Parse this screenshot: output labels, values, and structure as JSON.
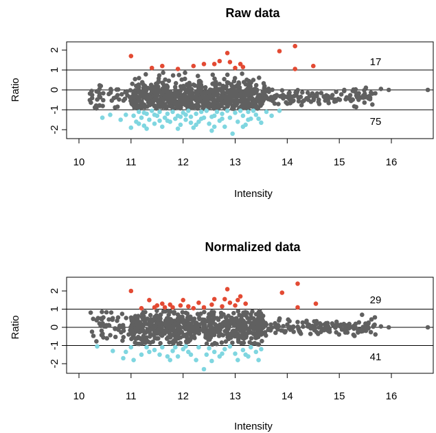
{
  "chart_data": [
    {
      "type": "scatter",
      "title": "Raw data",
      "xlabel": "Intensity",
      "ylabel": "Ratio",
      "xlim": [
        10,
        16.8
      ],
      "ylim": [
        -2.5,
        2.5
      ],
      "x_ticks": [
        "10",
        "11",
        "12",
        "13",
        "14",
        "15",
        "16"
      ],
      "y_ticks": [
        "-2",
        "-1",
        "0",
        "1",
        "2"
      ],
      "hlines": [
        -1,
        0,
        1
      ],
      "counts": {
        "up": "17",
        "down": "75"
      },
      "colors": {
        "up": "#e34a33",
        "down": "#7fd6e0",
        "mid": "#606060"
      },
      "up_points": [
        [
          11.0,
          1.7
        ],
        [
          11.4,
          1.1
        ],
        [
          11.6,
          1.2
        ],
        [
          11.9,
          1.05
        ],
        [
          12.2,
          1.2
        ],
        [
          12.4,
          1.3
        ],
        [
          12.6,
          1.3
        ],
        [
          12.7,
          1.45
        ],
        [
          12.85,
          1.85
        ],
        [
          12.9,
          1.4
        ],
        [
          13.0,
          1.1
        ],
        [
          13.1,
          1.3
        ],
        [
          13.15,
          1.15
        ],
        [
          13.85,
          1.95
        ],
        [
          14.15,
          2.2
        ],
        [
          14.15,
          1.05
        ],
        [
          14.5,
          1.2
        ]
      ],
      "down_points": [
        [
          10.45,
          -1.4
        ],
        [
          10.6,
          -1.25
        ],
        [
          10.8,
          -1.5
        ],
        [
          11.0,
          -1.9
        ],
        [
          11.05,
          -1.3
        ],
        [
          11.1,
          -1.6
        ],
        [
          11.15,
          -1.1
        ],
        [
          11.2,
          -1.4
        ],
        [
          11.25,
          -1.8
        ],
        [
          11.3,
          -1.2
        ],
        [
          11.35,
          -1.5
        ],
        [
          11.4,
          -1.05
        ],
        [
          11.45,
          -1.7
        ],
        [
          11.5,
          -1.3
        ],
        [
          11.55,
          -1.1
        ],
        [
          11.6,
          -1.85
        ],
        [
          11.65,
          -1.4
        ],
        [
          11.7,
          -1.2
        ],
        [
          11.75,
          -1.6
        ],
        [
          11.8,
          -1.1
        ],
        [
          11.85,
          -1.45
        ],
        [
          11.9,
          -1.3
        ],
        [
          11.95,
          -1.75
        ],
        [
          12.0,
          -1.15
        ],
        [
          12.05,
          -1.5
        ],
        [
          12.1,
          -1.05
        ],
        [
          12.15,
          -1.35
        ],
        [
          12.2,
          -1.9
        ],
        [
          12.25,
          -1.2
        ],
        [
          12.3,
          -1.6
        ],
        [
          12.35,
          -1.1
        ],
        [
          12.4,
          -1.4
        ],
        [
          12.45,
          -1.05
        ],
        [
          12.5,
          -1.7
        ],
        [
          12.55,
          -2.05
        ],
        [
          12.6,
          -1.3
        ],
        [
          12.65,
          -1.1
        ],
        [
          12.7,
          -1.55
        ],
        [
          12.75,
          -1.2
        ],
        [
          12.8,
          -1.85
        ],
        [
          12.85,
          -1.05
        ],
        [
          12.9,
          -1.4
        ],
        [
          12.95,
          -2.2
        ],
        [
          13.0,
          -1.15
        ],
        [
          13.05,
          -1.6
        ],
        [
          13.1,
          -1.05
        ],
        [
          13.15,
          -1.3
        ],
        [
          13.2,
          -1.75
        ],
        [
          13.25,
          -1.1
        ],
        [
          13.3,
          -1.45
        ],
        [
          13.35,
          -1.05
        ],
        [
          13.4,
          -1.25
        ],
        [
          13.5,
          -1.65
        ],
        [
          13.6,
          -1.1
        ],
        [
          13.7,
          -1.3
        ],
        [
          13.85,
          -1.05
        ],
        [
          11.9,
          -1.95
        ],
        [
          11.3,
          -1.95
        ],
        [
          12.6,
          -1.85
        ],
        [
          11.7,
          -1.55
        ],
        [
          12.35,
          -1.45
        ],
        [
          10.9,
          -1.25
        ],
        [
          13.45,
          -1.45
        ],
        [
          12.05,
          -1.25
        ],
        [
          11.15,
          -1.7
        ],
        [
          12.75,
          -1.45
        ],
        [
          11.55,
          -1.55
        ],
        [
          12.25,
          -1.75
        ],
        [
          13.25,
          -1.5
        ],
        [
          11.45,
          -1.25
        ],
        [
          12.15,
          -1.65
        ],
        [
          11.95,
          -1.35
        ],
        [
          13.15,
          -1.85
        ],
        [
          12.55,
          -1.35
        ],
        [
          11.25,
          -1.15
        ]
      ]
    },
    {
      "type": "scatter",
      "title": "Normalized data",
      "xlabel": "Intensity",
      "ylabel": "Ratio",
      "xlim": [
        10,
        16.8
      ],
      "ylim": [
        -2.5,
        2.5
      ],
      "x_ticks": [
        "10",
        "11",
        "12",
        "13",
        "14",
        "15",
        "16"
      ],
      "y_ticks": [
        "-2",
        "-1",
        "0",
        "1",
        "2"
      ],
      "hlines": [
        -1,
        0,
        1
      ],
      "counts": {
        "up": "29",
        "down": "41"
      },
      "colors": {
        "up": "#e34a33",
        "down": "#7fd6e0",
        "mid": "#606060"
      },
      "up_points": [
        [
          11.0,
          2.0
        ],
        [
          11.2,
          1.05
        ],
        [
          11.35,
          1.5
        ],
        [
          11.5,
          1.2
        ],
        [
          11.6,
          1.3
        ],
        [
          11.65,
          1.1
        ],
        [
          11.75,
          1.25
        ],
        [
          11.8,
          1.1
        ],
        [
          11.95,
          1.2
        ],
        [
          12.0,
          1.5
        ],
        [
          12.1,
          1.15
        ],
        [
          12.2,
          1.05
        ],
        [
          12.3,
          1.35
        ],
        [
          12.4,
          1.1
        ],
        [
          12.55,
          1.25
        ],
        [
          12.6,
          1.55
        ],
        [
          12.75,
          1.15
        ],
        [
          12.8,
          1.55
        ],
        [
          12.85,
          2.1
        ],
        [
          12.9,
          1.35
        ],
        [
          13.0,
          1.2
        ],
        [
          13.05,
          1.5
        ],
        [
          13.1,
          1.7
        ],
        [
          13.2,
          1.3
        ],
        [
          13.9,
          1.9
        ],
        [
          14.2,
          2.4
        ],
        [
          14.2,
          1.1
        ],
        [
          14.55,
          1.3
        ],
        [
          11.45,
          1.1
        ]
      ],
      "down_points": [
        [
          10.35,
          -1.05
        ],
        [
          10.65,
          -1.3
        ],
        [
          10.85,
          -1.7
        ],
        [
          10.9,
          -1.35
        ],
        [
          11.0,
          -1.1
        ],
        [
          11.05,
          -1.8
        ],
        [
          11.3,
          -1.1
        ],
        [
          11.45,
          -1.25
        ],
        [
          11.55,
          -1.5
        ],
        [
          11.6,
          -1.1
        ],
        [
          11.7,
          -1.6
        ],
        [
          11.8,
          -1.3
        ],
        [
          11.85,
          -1.1
        ],
        [
          11.9,
          -1.6
        ],
        [
          12.0,
          -1.2
        ],
        [
          12.05,
          -1.05
        ],
        [
          12.1,
          -1.35
        ],
        [
          12.25,
          -1.8
        ],
        [
          12.3,
          -1.1
        ],
        [
          12.4,
          -2.3
        ],
        [
          12.45,
          -1.5
        ],
        [
          12.5,
          -1.15
        ],
        [
          12.6,
          -1.35
        ],
        [
          12.7,
          -1.6
        ],
        [
          12.8,
          -1.2
        ],
        [
          12.9,
          -1.05
        ],
        [
          13.0,
          -1.45
        ],
        [
          13.05,
          -1.8
        ],
        [
          13.15,
          -1.25
        ],
        [
          13.2,
          -1.5
        ],
        [
          13.3,
          -1.1
        ],
        [
          13.4,
          -1.35
        ],
        [
          13.45,
          -1.8
        ],
        [
          13.5,
          -1.2
        ],
        [
          11.2,
          -1.5
        ],
        [
          11.75,
          -1.8
        ],
        [
          12.15,
          -1.5
        ],
        [
          12.75,
          -1.45
        ],
        [
          13.25,
          -1.6
        ],
        [
          11.35,
          -1.35
        ],
        [
          12.55,
          -1.85
        ]
      ]
    }
  ]
}
